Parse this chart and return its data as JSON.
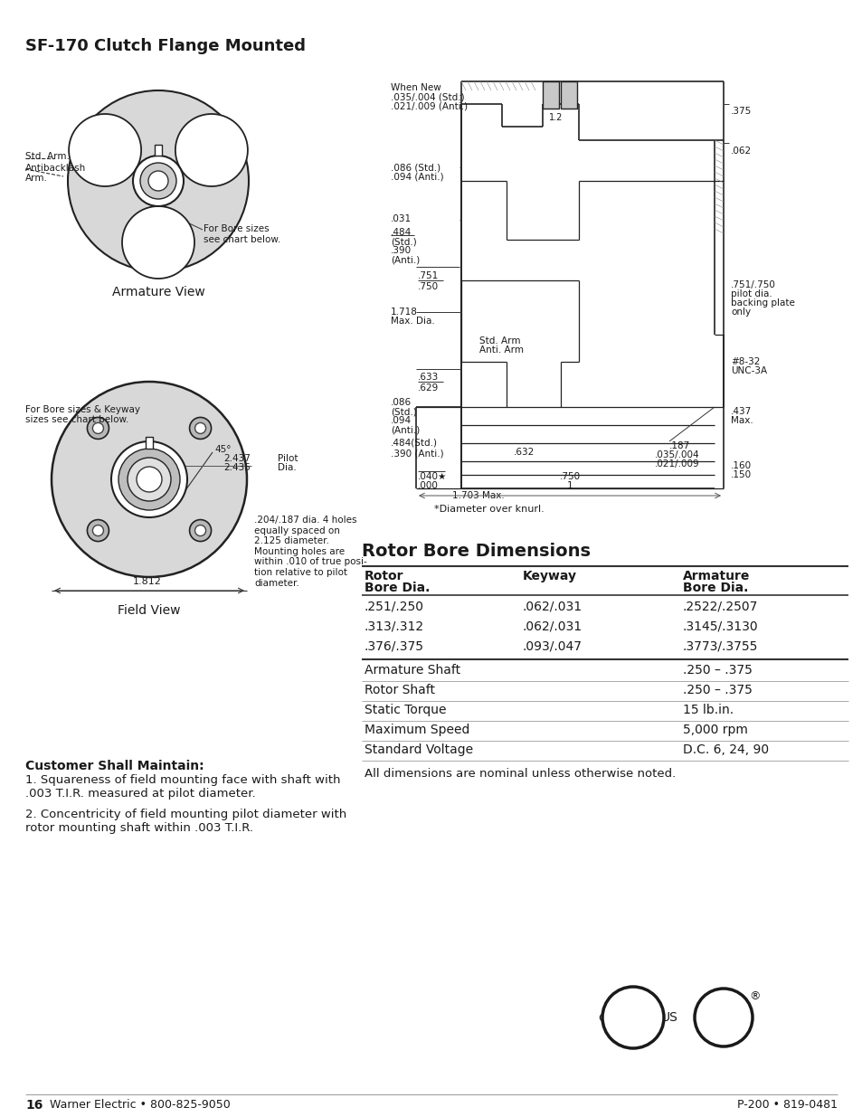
{
  "title": "SF-170 Clutch Flange Mounted",
  "page_number": "16",
  "company": "Warner Electric • 800-825-9050",
  "part_number": "P-200 • 819-0481",
  "rotor_bore_title": "Rotor Bore Dimensions",
  "table_headers": [
    "Rotor\nBore Dia.",
    "Keyway",
    "Armature\nBore Dia."
  ],
  "table_data": [
    [
      ".251/.250",
      ".062/.031",
      ".2522/.2507"
    ],
    [
      ".313/.312",
      ".062/.031",
      ".3145/.3130"
    ],
    [
      ".376/.375",
      ".093/.047",
      ".3773/.3755"
    ]
  ],
  "specs": [
    [
      "Armature Shaft",
      ".250 – .375"
    ],
    [
      "Rotor Shaft",
      ".250 – .375"
    ],
    [
      "Static Torque",
      "15 lb.in."
    ],
    [
      "Maximum Speed",
      "5,000 rpm"
    ],
    [
      "Standard Voltage",
      "D.C. 6, 24, 90"
    ]
  ],
  "dimensions_note": "All dimensions are nominal unless otherwise noted.",
  "customer_shall_maintain": "Customer Shall Maintain:",
  "customer_notes": [
    "Squareness of field mounting face with shaft with\n.003 T.I.R. measured at pilot diameter.",
    "Concentricity of field mounting pilot diameter with\nrotor mounting shaft within .003 T.I.R."
  ],
  "armature_view_label": "Armature View",
  "field_view_label": "Field View",
  "background_color": "#ffffff",
  "text_color": "#1a1a1a",
  "line_color": "#1a1a1a",
  "table_line_color": "#333333"
}
